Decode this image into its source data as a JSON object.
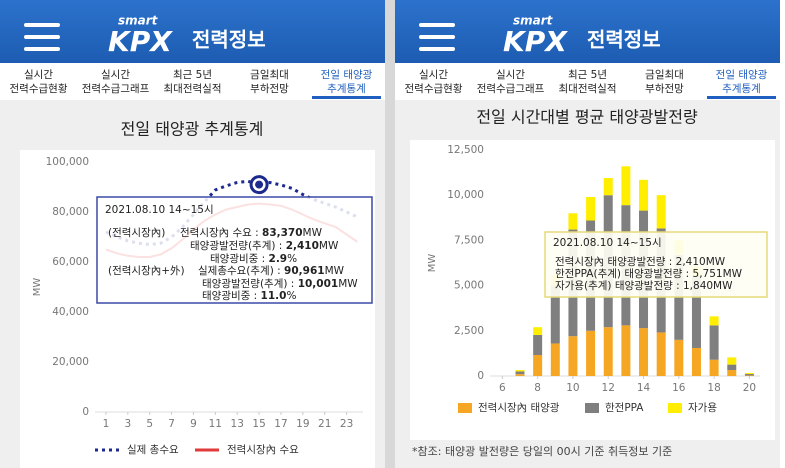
{
  "screens": [
    {
      "header": {
        "brand_small": "smart",
        "brand": "KPX",
        "title": "전력정보"
      },
      "tabs": [
        [
          "실시간",
          "전력수급현황"
        ],
        [
          "실시간",
          "전력수급그래프"
        ],
        [
          "최근 5년",
          "최대전력실적"
        ],
        [
          "금일최대",
          "부하전망"
        ],
        [
          "전일 태양광",
          "추계통계"
        ]
      ],
      "active_tab": 4
    },
    {
      "header": {
        "brand_small": "smart",
        "brand": "KPX",
        "title": "전력정보"
      },
      "tabs": [
        [
          "실시간",
          "전력수급현황"
        ],
        [
          "실시간",
          "전력수급그래프"
        ],
        [
          "최근 5년",
          "최대전력실적"
        ],
        [
          "금일최대",
          "부하전망"
        ],
        [
          "전일 태양광",
          "추계통계"
        ]
      ],
      "active_tab": 4
    }
  ],
  "chart_data": [
    {
      "type": "line",
      "title": "전일 태양광 추계통계",
      "y_label": "MW",
      "x": [
        1,
        2,
        3,
        4,
        5,
        6,
        7,
        8,
        9,
        10,
        11,
        12,
        13,
        14,
        15,
        16,
        17,
        18,
        19,
        20,
        21,
        22,
        23,
        24
      ],
      "xlim": [
        0,
        24.5
      ],
      "xticks": [
        1,
        3,
        5,
        7,
        9,
        11,
        13,
        15,
        17,
        19,
        21,
        23
      ],
      "ylim": [
        0,
        100000
      ],
      "yticks": [
        0,
        {
          "value": 20000,
          "label": "20,000"
        },
        {
          "value": 40000,
          "label": "40,000"
        },
        {
          "value": 60000,
          "label": "60,000"
        },
        {
          "value": 80000,
          "label": "80,000"
        },
        {
          "value": 100000,
          "label": "100,000"
        }
      ],
      "grid": false,
      "legend": "bottom",
      "highlight_x": 15,
      "series": [
        {
          "name": "실제 총수요",
          "color": "#1c2a8e",
          "dashed": true,
          "values": [
            72000,
            70000,
            68500,
            67500,
            67000,
            67500,
            70000,
            74000,
            79000,
            84000,
            88800,
            90500,
            91800,
            92300,
            90961,
            91800,
            90800,
            89500,
            87000,
            85000,
            83500,
            82000,
            80000,
            78000
          ]
        },
        {
          "name": "전력시장內 수요",
          "color": "#e03a3a",
          "dashed": false,
          "values": [
            65000,
            63500,
            62500,
            62000,
            62000,
            63000,
            65500,
            69000,
            73000,
            76500,
            79000,
            81000,
            82000,
            83000,
            83370,
            83000,
            82500,
            81000,
            79000,
            77000,
            75500,
            74000,
            71000,
            68000
          ]
        }
      ],
      "tooltip": {
        "title": "2021.08.10 14~15시",
        "rows": [
          {
            "prefix": "(전력시장內)",
            "label": "전력시장內 수요 : ",
            "value": "83,370",
            "unit": "MW"
          },
          {
            "label": "태양광발전량(추계) : ",
            "value": "2,410",
            "unit": "MW"
          },
          {
            "label": "태양광비중 : ",
            "value": "2.9",
            "unit": "%"
          },
          {
            "prefix": "(전력시장內+外)",
            "label": "실제총수요(추계) : ",
            "value": "90,961",
            "unit": "MW"
          },
          {
            "label": "태양광발전량(추계) : ",
            "value": "10,001",
            "unit": "MW"
          },
          {
            "label": "태양광비중 : ",
            "value": "11.0",
            "unit": "%"
          }
        ]
      }
    },
    {
      "type": "stacked_bar",
      "title": "전일 시간대별 평균 태양광발전량",
      "y_label": "MW",
      "x": [
        7,
        8,
        9,
        10,
        11,
        12,
        13,
        14,
        15,
        16,
        17,
        18,
        19,
        20
      ],
      "xlim": [
        5.3,
        20.6
      ],
      "xticks": [
        6,
        8,
        10,
        12,
        14,
        16,
        18,
        20
      ],
      "ylim": [
        0,
        12500
      ],
      "yticks": [
        0,
        {
          "value": 2500,
          "label": "2,500"
        },
        {
          "value": 5000,
          "label": "5,000"
        },
        {
          "value": 7500,
          "label": "7,500"
        },
        {
          "value": 10000,
          "label": "10,000"
        },
        {
          "value": 12500,
          "label": "12,500"
        }
      ],
      "grid": false,
      "legend": "bottom",
      "series": [
        {
          "name": "전력시장內 태양광",
          "color": "#f5a623",
          "values": [
            100,
            1160,
            1800,
            2200,
            2500,
            2700,
            2800,
            2650,
            2410,
            2000,
            1550,
            900,
            330,
            30
          ]
        },
        {
          "name": "한전PPA",
          "color": "#7f7f7f",
          "values": [
            150,
            1110,
            3200,
            5900,
            6100,
            7300,
            6650,
            6500,
            5751,
            4700,
            4000,
            1900,
            300,
            80
          ]
        },
        {
          "name": "자가용",
          "color": "#ffee00",
          "values": [
            80,
            430,
            600,
            900,
            1300,
            950,
            2150,
            1700,
            1840,
            800,
            500,
            500,
            400,
            60
          ]
        }
      ],
      "tooltip": {
        "title": "2021.08.10 14~15시",
        "rows": [
          "전력시장內 태양광발전량 : 2,410MW",
          "한전PPA(추계) 태양광발전량 : 5,751MW",
          "자가용(추계) 태양광발전량 : 1,840MW"
        ]
      },
      "note": "*참조: 태양광 발전량은 당일의 00시 기준 취득정보 기준"
    }
  ]
}
